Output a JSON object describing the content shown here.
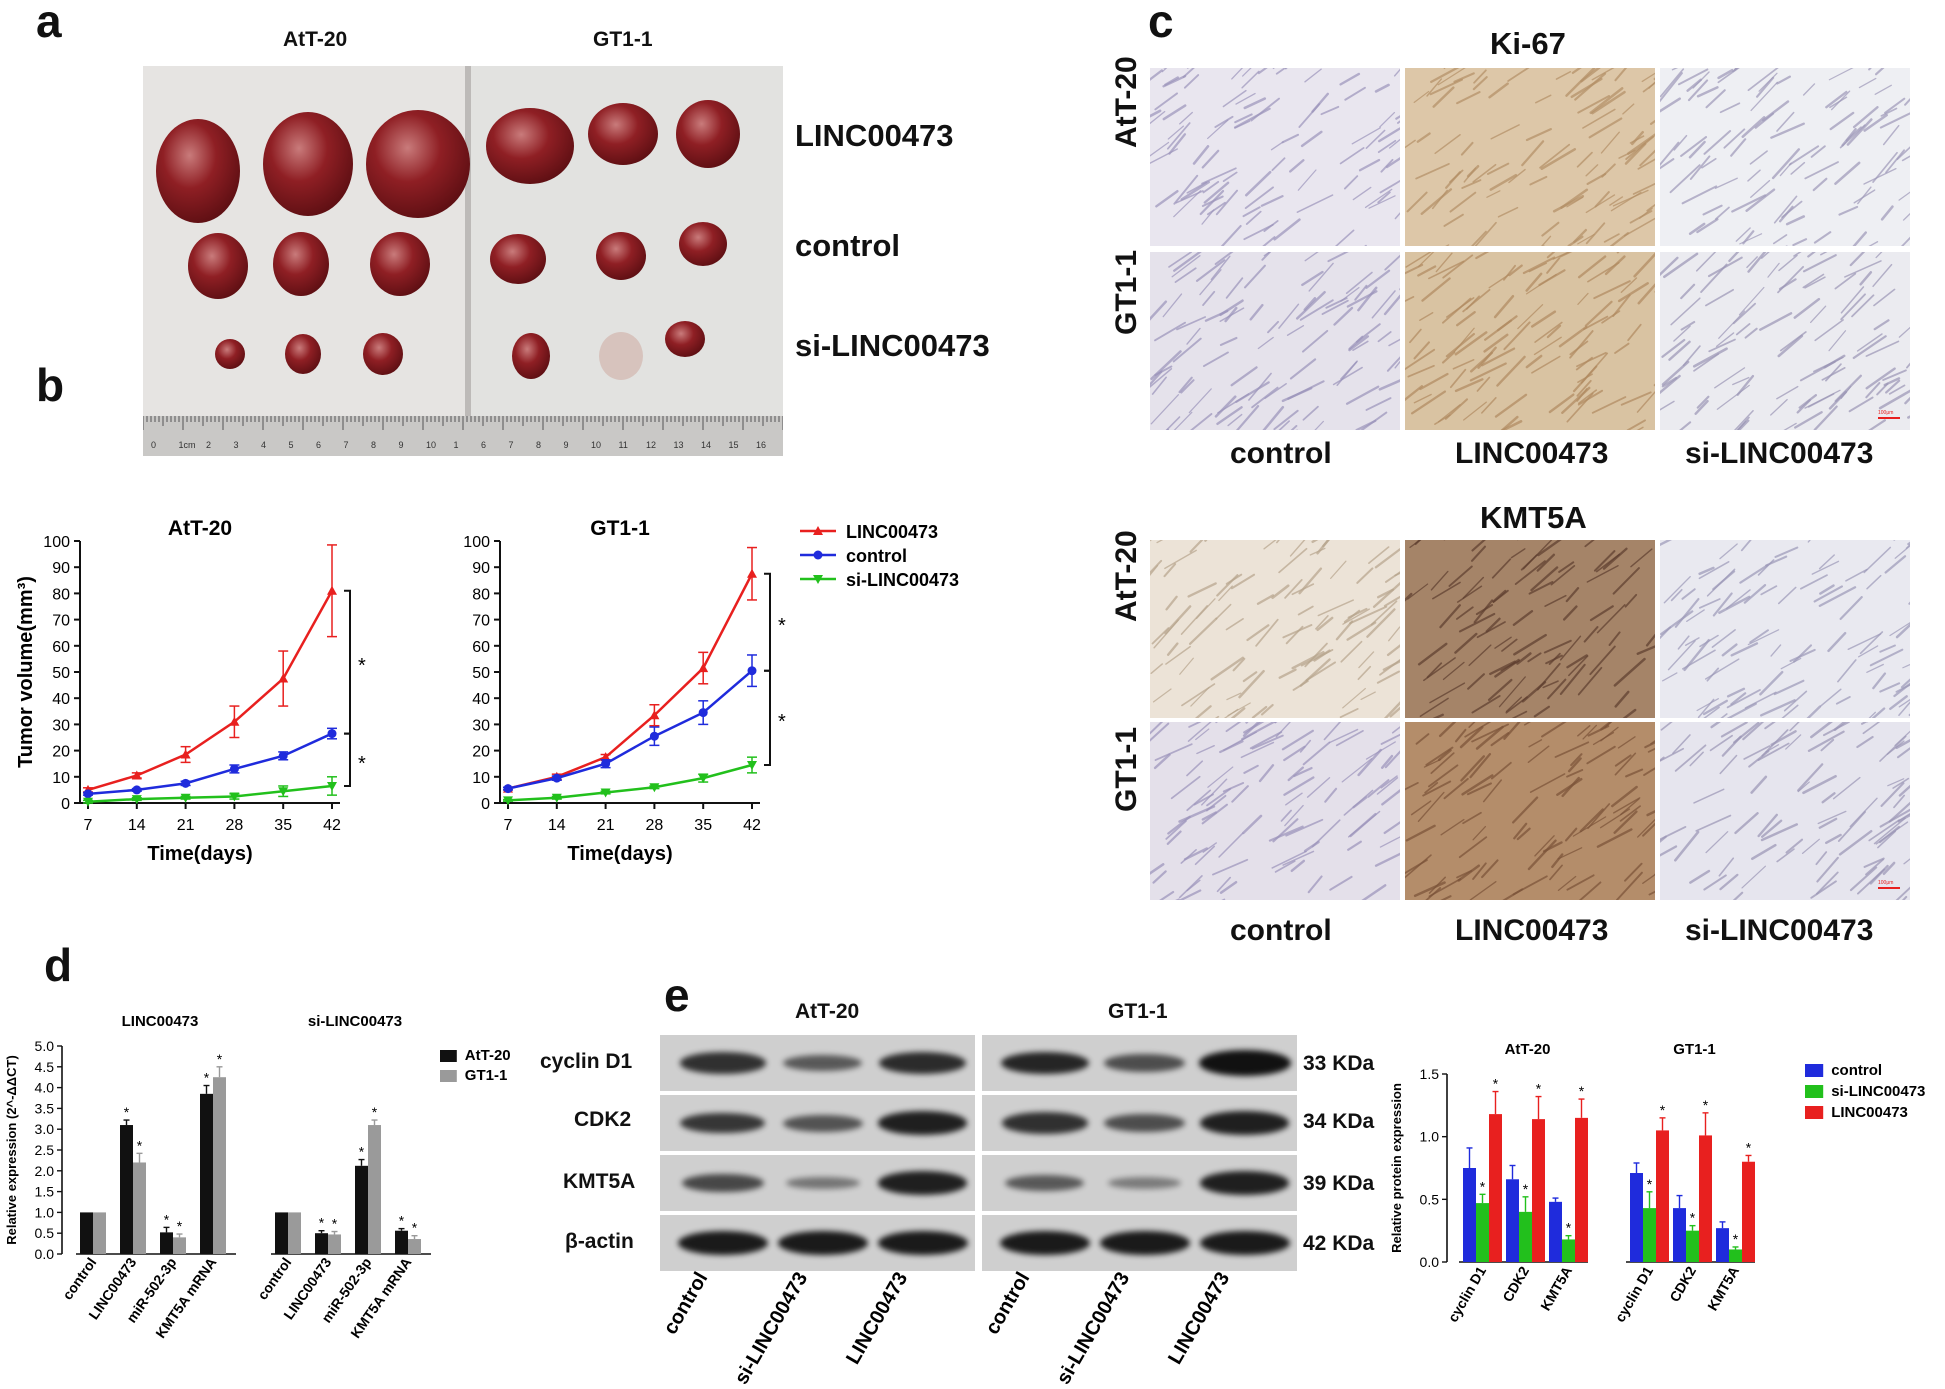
{
  "panels": {
    "a": "a",
    "b": "b",
    "c": "c",
    "d": "d",
    "e": "e"
  },
  "panel_a": {
    "cells": [
      "AtT-20",
      "GT1-1"
    ],
    "groups": [
      "LINC00473",
      "control",
      "si-LINC00473"
    ],
    "ruler_numbers": [
      "0",
      "1cm",
      "2",
      "3",
      "4",
      "5",
      "6",
      "7",
      "8",
      "9",
      "10",
      "1",
      "6",
      "7",
      "8",
      "9",
      "10",
      "11",
      "12",
      "13",
      "14",
      "15",
      "16"
    ]
  },
  "panel_c": {
    "stain_titles": [
      "Ki-67",
      "KMT5A"
    ],
    "rows": [
      "AtT-20",
      "GT1-1"
    ],
    "columns": [
      "control",
      "LINC00473",
      "si-LINC00473"
    ],
    "scale_label": "100μm"
  },
  "panel_e_blot": {
    "cells": [
      "AtT-20",
      "GT1-1"
    ],
    "proteins": [
      "cyclin D1",
      "CDK2",
      "KMT5A",
      "β-actin"
    ],
    "sizes": [
      "33 KDa",
      "34 KDa",
      "39 KDa",
      "42 KDa"
    ],
    "lanes": [
      "control",
      "si-LINC00473",
      "LINC00473",
      "control",
      "si-LINC00473",
      "LINC00473"
    ]
  },
  "colors": {
    "red": "#e8201f",
    "blue": "#1f2bdc",
    "green": "#22c01c",
    "black": "#111111",
    "grey": "#9a9a9a"
  },
  "chart_data": [
    {
      "id": "b-att20",
      "type": "line",
      "title": "AtT-20",
      "xlabel": "Time(days)",
      "ylabel": "Tumor volume(mm³)",
      "x": [
        7,
        14,
        21,
        28,
        35,
        42
      ],
      "ylim": [
        0,
        100
      ],
      "yticks": [
        "0",
        "10",
        "20",
        "30",
        "40",
        "50",
        "60",
        "70",
        "80",
        "90",
        "100"
      ],
      "series": [
        {
          "name": "LINC00473",
          "values": [
            5,
            10.5,
            18.5,
            31,
            47.5,
            81
          ],
          "err": [
            0.8,
            1,
            3,
            6,
            10.5,
            17.5
          ],
          "color": "#e8201f",
          "marker": "triangle"
        },
        {
          "name": "control",
          "values": [
            3.5,
            5,
            7.5,
            13,
            18,
            26.5
          ],
          "err": [
            0.5,
            0.5,
            0.8,
            1.5,
            1.5,
            2
          ],
          "color": "#1f2bdc",
          "marker": "circle"
        },
        {
          "name": "si-LINC00473",
          "values": [
            0.5,
            1.5,
            2,
            2.5,
            4.5,
            6.5
          ],
          "err": [
            0.5,
            0.5,
            0.5,
            1,
            2,
            3.5
          ],
          "color": "#22c01c",
          "marker": "triangle-down"
        }
      ],
      "significance": [
        "*",
        "*"
      ]
    },
    {
      "id": "b-gt11",
      "type": "line",
      "title": "GT1-1",
      "xlabel": "Time(days)",
      "ylabel": "",
      "x": [
        7,
        14,
        21,
        28,
        35,
        42
      ],
      "ylim": [
        0,
        100
      ],
      "yticks": [
        "0",
        "10",
        "20",
        "30",
        "40",
        "50",
        "60",
        "70",
        "80",
        "90",
        "100"
      ],
      "series": [
        {
          "name": "LINC00473",
          "values": [
            5.5,
            10,
            17.5,
            33.5,
            51.5,
            87.5
          ],
          "err": [
            0.5,
            1,
            1,
            4,
            6,
            10
          ],
          "color": "#e8201f",
          "marker": "triangle"
        },
        {
          "name": "control",
          "values": [
            5.5,
            9.5,
            15,
            25.5,
            34.5,
            50.5
          ],
          "err": [
            0.5,
            0.8,
            1.5,
            3.5,
            4.5,
            6
          ],
          "color": "#1f2bdc",
          "marker": "circle"
        },
        {
          "name": "si-LINC00473",
          "values": [
            1,
            2,
            4,
            6,
            9.5,
            14.5
          ],
          "err": [
            0.3,
            0.5,
            0.5,
            0.5,
            1.5,
            3
          ],
          "color": "#22c01c",
          "marker": "triangle-down"
        }
      ],
      "significance": [
        "*",
        "*"
      ],
      "legend": [
        "LINC00473",
        "control",
        "si-LINC00473"
      ]
    },
    {
      "id": "d",
      "type": "bar",
      "ylabel": "Relative expression (2^-ΔΔCT)",
      "ylim": [
        0,
        5.0
      ],
      "yticks": [
        "0.0",
        "0.5",
        "1.0",
        "1.5",
        "2.0",
        "2.5",
        "3.0",
        "3.5",
        "4.0",
        "4.5",
        "5.0"
      ],
      "groups": [
        {
          "title": "LINC00473",
          "categories": [
            "control",
            "LINC00473",
            "miR-502-3p",
            "KMT5A mRNA"
          ],
          "series": [
            {
              "name": "AtT-20",
              "values": [
                1.0,
                3.1,
                0.52,
                3.85
              ],
              "err": [
                0,
                0.12,
                0.12,
                0.2
              ],
              "stars": [
                "",
                "*",
                "*",
                "*"
              ]
            },
            {
              "name": "GT1-1",
              "values": [
                1.0,
                2.2,
                0.4,
                4.25
              ],
              "err": [
                0,
                0.22,
                0.08,
                0.25
              ],
              "stars": [
                "",
                "*",
                "*",
                "*"
              ]
            }
          ]
        },
        {
          "title": "si-LINC00473",
          "categories": [
            "control",
            "LINC00473",
            "miR-502-3p",
            "KMT5A mRNA"
          ],
          "series": [
            {
              "name": "AtT-20",
              "values": [
                1.0,
                0.5,
                2.12,
                0.56
              ],
              "err": [
                0,
                0.06,
                0.15,
                0.05
              ],
              "stars": [
                "",
                "*",
                "*",
                "*"
              ]
            },
            {
              "name": "GT1-1",
              "values": [
                1.0,
                0.47,
                3.1,
                0.36
              ],
              "err": [
                0,
                0.07,
                0.12,
                0.08
              ],
              "stars": [
                "",
                "*",
                "*",
                "*"
              ]
            }
          ]
        }
      ],
      "legend": [
        "AtT-20",
        "GT1-1"
      ]
    },
    {
      "id": "e-bar",
      "type": "bar",
      "ylabel": "Relative protein expression",
      "ylim": [
        0,
        1.5
      ],
      "yticks": [
        "0.0",
        "0.5",
        "1.0",
        "1.5"
      ],
      "groups": [
        {
          "title": "AtT-20",
          "categories": [
            "cyclin D1",
            "CDK2",
            "KMT5A"
          ],
          "series": [
            {
              "name": "control",
              "values": [
                0.75,
                0.66,
                0.48
              ],
              "err": [
                0.16,
                0.11,
                0.03
              ],
              "stars": [
                "",
                "",
                ""
              ]
            },
            {
              "name": "si-LINC00473",
              "values": [
                0.47,
                0.4,
                0.18
              ],
              "err": [
                0.07,
                0.12,
                0.03
              ],
              "stars": [
                "*",
                "*",
                "*"
              ]
            },
            {
              "name": "LINC00473",
              "values": [
                1.18,
                1.14,
                1.15
              ],
              "err": [
                0.18,
                0.18,
                0.15
              ],
              "stars": [
                "*",
                "*",
                "*"
              ]
            }
          ]
        },
        {
          "title": "GT1-1",
          "categories": [
            "cyclin D1",
            "CDK2",
            "KMT5A"
          ],
          "series": [
            {
              "name": "control",
              "values": [
                0.71,
                0.43,
                0.27
              ],
              "err": [
                0.08,
                0.1,
                0.05
              ],
              "stars": [
                "",
                "",
                ""
              ]
            },
            {
              "name": "si-LINC00473",
              "values": [
                0.43,
                0.25,
                0.1
              ],
              "err": [
                0.13,
                0.04,
                0.02
              ],
              "stars": [
                "*",
                "*",
                "*"
              ]
            },
            {
              "name": "LINC00473",
              "values": [
                1.05,
                1.01,
                0.8
              ],
              "err": [
                0.1,
                0.18,
                0.05
              ],
              "stars": [
                "*",
                "*",
                "*"
              ]
            }
          ]
        }
      ],
      "legend": [
        "control",
        "si-LINC00473",
        "LINC00473"
      ]
    }
  ]
}
